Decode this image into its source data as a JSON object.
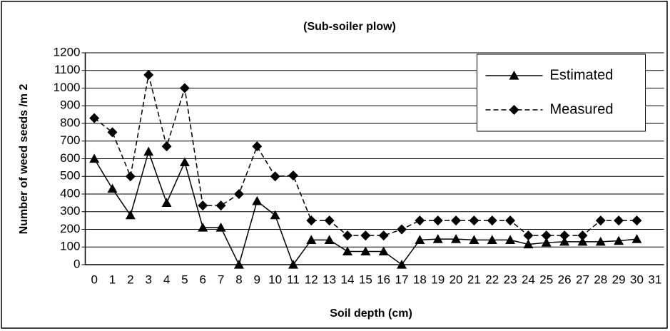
{
  "chart_data": {
    "type": "line",
    "title": "(Sub-soiler plow)",
    "x_label": "Soil depth (cm)",
    "y_label": "Number of weed seeds /m 2",
    "x": [
      0,
      1,
      2,
      3,
      4,
      5,
      6,
      7,
      8,
      9,
      10,
      11,
      12,
      13,
      14,
      15,
      16,
      17,
      18,
      19,
      20,
      21,
      22,
      23,
      24,
      25,
      26,
      27,
      28,
      29,
      30,
      31
    ],
    "series": [
      {
        "name": "Estimated",
        "color": "#000000",
        "marker": "triangle",
        "dash": false,
        "values": [
          600,
          430,
          280,
          640,
          350,
          580,
          210,
          210,
          0,
          360,
          280,
          0,
          140,
          140,
          75,
          75,
          75,
          0,
          140,
          145,
          145,
          140,
          140,
          140,
          115,
          125,
          130,
          130,
          130,
          135,
          145,
          null
        ]
      },
      {
        "name": "Measured",
        "color": "#000000",
        "marker": "diamond",
        "dash": true,
        "values": [
          830,
          750,
          500,
          1075,
          670,
          1000,
          335,
          335,
          400,
          670,
          500,
          505,
          250,
          250,
          165,
          165,
          165,
          200,
          250,
          250,
          250,
          250,
          250,
          250,
          165,
          165,
          165,
          165,
          250,
          250,
          250,
          null
        ]
      }
    ],
    "ylim": [
      0,
      1200
    ],
    "yticks": [
      0,
      100,
      200,
      300,
      400,
      500,
      600,
      700,
      800,
      900,
      1000,
      1100,
      1200
    ],
    "grid": true,
    "legend": "upper right"
  }
}
